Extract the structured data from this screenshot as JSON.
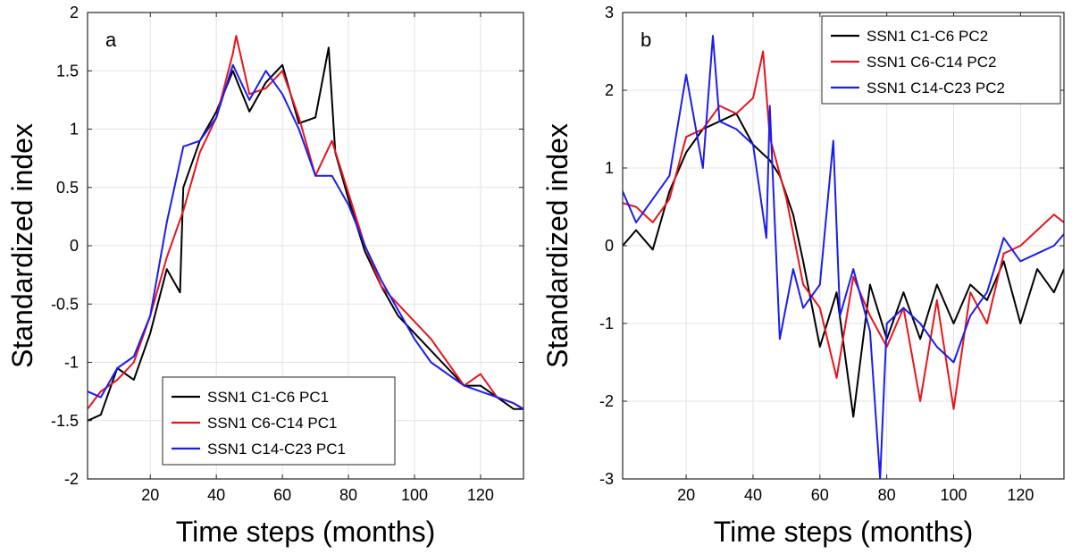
{
  "chart_data": [
    {
      "type": "line",
      "panel_label": "a",
      "xlabel": "Time steps (months)",
      "ylabel": "Standardized index",
      "xlim": [
        1,
        133
      ],
      "ylim": [
        -2,
        2
      ],
      "xticks": [
        20,
        40,
        60,
        80,
        100,
        120
      ],
      "yticks": [
        -2,
        -1.5,
        -1,
        -0.5,
        0,
        0.5,
        1,
        1.5,
        2
      ],
      "grid": true,
      "legend_position": "bottom-center",
      "series": [
        {
          "name": "SSN1 C1-C6 PC1",
          "color": "#000000",
          "x": [
            1,
            5,
            10,
            15,
            20,
            25,
            29,
            30,
            35,
            40,
            45,
            50,
            55,
            60,
            65,
            70,
            74,
            76,
            80,
            85,
            90,
            95,
            100,
            105,
            110,
            115,
            120,
            125,
            130,
            133
          ],
          "y": [
            -1.5,
            -1.45,
            -1.05,
            -1.15,
            -0.75,
            -0.2,
            -0.4,
            0.5,
            0.9,
            1.15,
            1.5,
            1.15,
            1.4,
            1.55,
            1.05,
            1.1,
            1.7,
            0.8,
            0.4,
            -0.05,
            -0.35,
            -0.6,
            -0.75,
            -0.9,
            -1.05,
            -1.2,
            -1.2,
            -1.3,
            -1.4,
            -1.4
          ]
        },
        {
          "name": "SSN1 C6-C14 PC1",
          "color": "#e8141c",
          "x": [
            1,
            5,
            10,
            15,
            20,
            25,
            30,
            35,
            40,
            45,
            46,
            50,
            55,
            60,
            65,
            70,
            75,
            80,
            85,
            90,
            95,
            100,
            105,
            110,
            115,
            120,
            125,
            130,
            133
          ],
          "y": [
            -1.4,
            -1.25,
            -1.15,
            -1.0,
            -0.6,
            -0.1,
            0.3,
            0.8,
            1.1,
            1.65,
            1.8,
            1.3,
            1.35,
            1.5,
            1.1,
            0.6,
            0.9,
            0.45,
            0.0,
            -0.35,
            -0.5,
            -0.65,
            -0.8,
            -1.0,
            -1.2,
            -1.1,
            -1.3,
            -1.35,
            -1.4
          ]
        },
        {
          "name": "SSN1 C14-C23 PC1",
          "color": "#1c1cf0",
          "x": [
            1,
            5,
            10,
            15,
            20,
            25,
            30,
            35,
            40,
            45,
            50,
            55,
            60,
            65,
            70,
            75,
            80,
            85,
            90,
            95,
            100,
            105,
            110,
            115,
            120,
            125,
            130,
            133
          ],
          "y": [
            -1.25,
            -1.3,
            -1.05,
            -0.95,
            -0.6,
            0.2,
            0.85,
            0.9,
            1.1,
            1.55,
            1.25,
            1.5,
            1.3,
            1.0,
            0.6,
            0.6,
            0.35,
            0.0,
            -0.3,
            -0.55,
            -0.8,
            -1.0,
            -1.1,
            -1.2,
            -1.25,
            -1.3,
            -1.35,
            -1.4
          ]
        }
      ]
    },
    {
      "type": "line",
      "panel_label": "b",
      "xlabel": "Time steps (months)",
      "ylabel": "Standardized index",
      "xlim": [
        1,
        133
      ],
      "ylim": [
        -3,
        3
      ],
      "xticks": [
        20,
        40,
        60,
        80,
        100,
        120
      ],
      "yticks": [
        -3,
        -2,
        -1,
        0,
        1,
        2,
        3
      ],
      "grid": true,
      "legend_position": "top-right",
      "series": [
        {
          "name": "SSN1 C1-C6 PC2",
          "color": "#000000",
          "x": [
            1,
            5,
            10,
            15,
            20,
            25,
            30,
            35,
            40,
            45,
            48,
            52,
            55,
            60,
            65,
            70,
            75,
            80,
            85,
            90,
            95,
            100,
            105,
            110,
            115,
            120,
            125,
            130,
            133
          ],
          "y": [
            0.0,
            0.2,
            -0.05,
            0.7,
            1.2,
            1.5,
            1.6,
            1.7,
            1.3,
            1.1,
            0.9,
            0.4,
            -0.2,
            -1.3,
            -0.6,
            -2.2,
            -0.5,
            -1.2,
            -0.6,
            -1.2,
            -0.5,
            -1.0,
            -0.5,
            -0.7,
            -0.2,
            -1.0,
            -0.3,
            -0.6,
            -0.3
          ]
        },
        {
          "name": "SSN1 C6-C14 PC2",
          "color": "#e8141c",
          "x": [
            1,
            5,
            10,
            15,
            20,
            25,
            30,
            35,
            40,
            43,
            45,
            50,
            55,
            60,
            65,
            70,
            75,
            80,
            85,
            90,
            95,
            100,
            105,
            110,
            115,
            120,
            125,
            130,
            133
          ],
          "y": [
            0.55,
            0.5,
            0.3,
            0.6,
            1.4,
            1.5,
            1.8,
            1.7,
            1.9,
            2.5,
            1.4,
            0.6,
            -0.5,
            -0.8,
            -1.7,
            -0.4,
            -0.9,
            -1.3,
            -0.8,
            -2.0,
            -0.7,
            -2.1,
            -0.6,
            -1.0,
            -0.1,
            0.0,
            0.2,
            0.4,
            0.3
          ]
        },
        {
          "name": "SSN1 C14-C23 PC2",
          "color": "#1c1cf0",
          "x": [
            1,
            5,
            10,
            15,
            20,
            25,
            28,
            30,
            35,
            40,
            44,
            45,
            48,
            52,
            55,
            60,
            64,
            66,
            70,
            75,
            78,
            80,
            85,
            90,
            95,
            100,
            105,
            110,
            115,
            120,
            125,
            130,
            133
          ],
          "y": [
            0.7,
            0.3,
            0.6,
            0.9,
            2.2,
            1.0,
            2.7,
            1.6,
            1.5,
            1.3,
            0.1,
            1.8,
            -1.2,
            -0.3,
            -0.8,
            -0.5,
            1.35,
            -0.9,
            -0.3,
            -1.1,
            -3.0,
            -1.0,
            -0.8,
            -1.0,
            -1.3,
            -1.5,
            -0.9,
            -0.6,
            0.1,
            -0.2,
            -0.1,
            0.0,
            0.15
          ]
        }
      ]
    }
  ]
}
